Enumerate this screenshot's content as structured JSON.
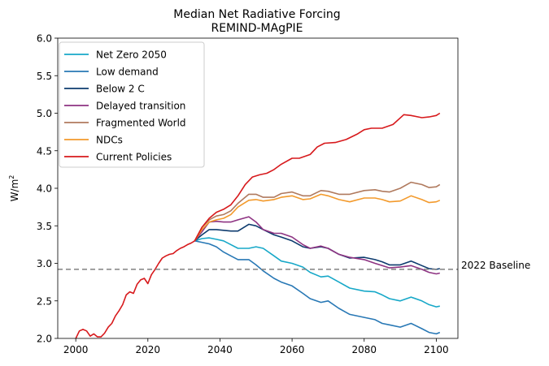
{
  "chart_data": {
    "type": "line",
    "title": "Median Net Radiative Forcing",
    "subtitle": "REMIND-MAgPIE",
    "ylabel_base": "W/m",
    "ylabel_sup": "2",
    "xlabel": "",
    "xlim": [
      1995,
      2106
    ],
    "ylim": [
      2.0,
      6.0
    ],
    "xticks": [
      2000,
      2020,
      2040,
      2060,
      2080,
      2100
    ],
    "yticks": [
      "2.0",
      "2.5",
      "3.0",
      "3.5",
      "4.0",
      "4.5",
      "5.0",
      "5.5",
      "6.0"
    ],
    "grid": false,
    "legend_position": "top-left",
    "baseline": {
      "label": "2022 Baseline",
      "value": 2.92,
      "color": "#808080"
    },
    "history": {
      "x": [
        2000,
        2001,
        2002,
        2003,
        2004,
        2005,
        2006,
        2007,
        2008,
        2009,
        2010,
        2011,
        2012,
        2013,
        2014,
        2015,
        2016,
        2017,
        2018,
        2019,
        2020,
        2021,
        2022,
        2023,
        2024,
        2025,
        2026,
        2027,
        2028,
        2029,
        2030,
        2031,
        2032,
        2033
      ],
      "y": [
        2.0,
        2.1,
        2.12,
        2.1,
        2.03,
        2.06,
        2.02,
        2.02,
        2.07,
        2.15,
        2.2,
        2.3,
        2.37,
        2.45,
        2.58,
        2.62,
        2.6,
        2.72,
        2.78,
        2.8,
        2.73,
        2.85,
        2.92,
        3.0,
        3.07,
        3.1,
        3.12,
        3.13,
        3.17,
        3.2,
        3.22,
        3.25,
        3.27,
        3.3
      ]
    },
    "series": [
      {
        "name": "Net Zero 2050",
        "color": "#17a8c8",
        "x": [
          2033,
          2035,
          2037,
          2039,
          2041,
          2043,
          2045,
          2048,
          2050,
          2052,
          2055,
          2057,
          2060,
          2063,
          2065,
          2068,
          2070,
          2073,
          2076,
          2080,
          2083,
          2085,
          2087,
          2090,
          2093,
          2096,
          2098,
          2100,
          2101
        ],
        "y": [
          3.3,
          3.33,
          3.34,
          3.32,
          3.3,
          3.25,
          3.2,
          3.2,
          3.22,
          3.2,
          3.1,
          3.03,
          3.0,
          2.95,
          2.88,
          2.82,
          2.83,
          2.75,
          2.67,
          2.63,
          2.62,
          2.58,
          2.53,
          2.5,
          2.55,
          2.5,
          2.45,
          2.42,
          2.43
        ]
      },
      {
        "name": "Low demand",
        "color": "#2878b5",
        "x": [
          2033,
          2035,
          2037,
          2039,
          2041,
          2043,
          2045,
          2048,
          2050,
          2052,
          2055,
          2057,
          2060,
          2063,
          2065,
          2068,
          2070,
          2073,
          2076,
          2080,
          2083,
          2085,
          2087,
          2090,
          2093,
          2096,
          2098,
          2100,
          2101
        ],
        "y": [
          3.3,
          3.28,
          3.26,
          3.22,
          3.15,
          3.1,
          3.05,
          3.05,
          2.98,
          2.9,
          2.8,
          2.75,
          2.7,
          2.6,
          2.53,
          2.48,
          2.5,
          2.4,
          2.32,
          2.28,
          2.25,
          2.2,
          2.18,
          2.15,
          2.2,
          2.13,
          2.08,
          2.06,
          2.08
        ]
      },
      {
        "name": "Below 2 C",
        "color": "#0d3b6e",
        "x": [
          2033,
          2035,
          2037,
          2039,
          2041,
          2043,
          2045,
          2048,
          2050,
          2052,
          2055,
          2057,
          2060,
          2063,
          2065,
          2068,
          2070,
          2073,
          2076,
          2080,
          2083,
          2085,
          2087,
          2090,
          2093,
          2096,
          2098,
          2100,
          2101
        ],
        "y": [
          3.3,
          3.38,
          3.45,
          3.45,
          3.44,
          3.43,
          3.43,
          3.52,
          3.5,
          3.45,
          3.38,
          3.35,
          3.3,
          3.22,
          3.2,
          3.22,
          3.2,
          3.12,
          3.07,
          3.08,
          3.05,
          3.02,
          2.98,
          2.98,
          3.03,
          2.97,
          2.93,
          2.92,
          2.93
        ]
      },
      {
        "name": "Delayed transition",
        "color": "#8e3382",
        "x": [
          2033,
          2035,
          2037,
          2039,
          2041,
          2043,
          2045,
          2048,
          2050,
          2052,
          2055,
          2057,
          2060,
          2063,
          2065,
          2068,
          2070,
          2073,
          2076,
          2080,
          2083,
          2085,
          2087,
          2090,
          2093,
          2096,
          2098,
          2100,
          2101
        ],
        "y": [
          3.3,
          3.42,
          3.55,
          3.56,
          3.55,
          3.55,
          3.58,
          3.62,
          3.55,
          3.45,
          3.4,
          3.4,
          3.35,
          3.25,
          3.2,
          3.23,
          3.2,
          3.12,
          3.08,
          3.05,
          3.0,
          2.97,
          2.94,
          2.95,
          2.97,
          2.92,
          2.88,
          2.86,
          2.87
        ]
      },
      {
        "name": "Fragmented World",
        "color": "#b07a5e",
        "x": [
          2033,
          2035,
          2037,
          2039,
          2041,
          2043,
          2045,
          2048,
          2050,
          2052,
          2055,
          2057,
          2060,
          2063,
          2065,
          2068,
          2070,
          2073,
          2076,
          2080,
          2083,
          2085,
          2087,
          2090,
          2093,
          2096,
          2098,
          2100,
          2101
        ],
        "y": [
          3.3,
          3.48,
          3.58,
          3.63,
          3.65,
          3.7,
          3.8,
          3.92,
          3.92,
          3.88,
          3.88,
          3.93,
          3.95,
          3.9,
          3.9,
          3.97,
          3.96,
          3.92,
          3.92,
          3.97,
          3.98,
          3.96,
          3.95,
          4.0,
          4.08,
          4.05,
          4.01,
          4.02,
          4.05
        ]
      },
      {
        "name": "NDCs",
        "color": "#f39a2c",
        "x": [
          2033,
          2035,
          2037,
          2039,
          2041,
          2043,
          2045,
          2048,
          2050,
          2052,
          2055,
          2057,
          2060,
          2063,
          2065,
          2068,
          2070,
          2073,
          2076,
          2080,
          2083,
          2085,
          2087,
          2090,
          2093,
          2096,
          2098,
          2100,
          2101
        ],
        "y": [
          3.3,
          3.45,
          3.55,
          3.58,
          3.6,
          3.65,
          3.75,
          3.84,
          3.85,
          3.83,
          3.85,
          3.88,
          3.9,
          3.85,
          3.86,
          3.92,
          3.9,
          3.85,
          3.82,
          3.87,
          3.87,
          3.85,
          3.82,
          3.83,
          3.9,
          3.85,
          3.81,
          3.82,
          3.84
        ]
      },
      {
        "name": "Current Policies",
        "color": "#d7191c",
        "x": [
          2033,
          2035,
          2037,
          2039,
          2041,
          2043,
          2045,
          2047,
          2049,
          2051,
          2053,
          2055,
          2057,
          2060,
          2062,
          2065,
          2067,
          2069,
          2072,
          2075,
          2078,
          2080,
          2082,
          2085,
          2088,
          2091,
          2093,
          2096,
          2098,
          2100,
          2101
        ],
        "y": [
          3.3,
          3.48,
          3.6,
          3.68,
          3.72,
          3.78,
          3.9,
          4.05,
          4.15,
          4.18,
          4.2,
          4.25,
          4.32,
          4.4,
          4.4,
          4.45,
          4.55,
          4.6,
          4.61,
          4.65,
          4.72,
          4.78,
          4.8,
          4.8,
          4.85,
          4.98,
          4.97,
          4.94,
          4.95,
          4.97,
          5.0
        ]
      }
    ]
  }
}
